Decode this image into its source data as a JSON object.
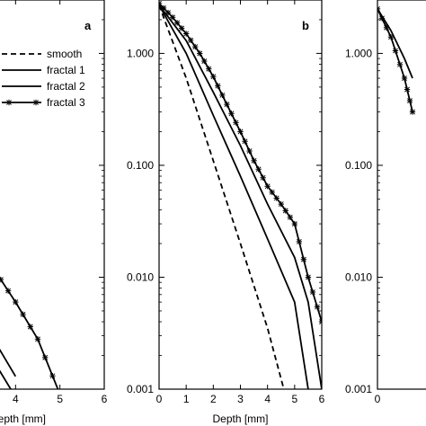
{
  "chart_data": [
    {
      "panel": "a",
      "type": "line",
      "title": "",
      "xlabel": "Depth [mm]",
      "ylabel": "",
      "y_scale": "log",
      "xlim": [
        0,
        6
      ],
      "ylim": [
        0.001,
        3
      ],
      "x_ticks": [
        "3",
        "4",
        "5",
        "6"
      ],
      "legend": {
        "placement": "top-right",
        "entries": [
          "smooth",
          "fractal 1",
          "fractal 2",
          "fractal 3"
        ]
      },
      "series": [
        {
          "name": "fractal 1",
          "style": "solid",
          "x": [
            1.5,
            2.0,
            2.5,
            3.0,
            3.5,
            4.0
          ],
          "y": [
            0.04,
            0.02,
            0.009,
            0.004,
            0.0018,
            0.00085
          ]
        },
        {
          "name": "fractal 2",
          "style": "solid",
          "x": [
            1.5,
            2.0,
            2.5,
            3.0,
            3.5,
            4.0
          ],
          "y": [
            0.06,
            0.03,
            0.014,
            0.006,
            0.0028,
            0.0013
          ]
        },
        {
          "name": "fractal 3",
          "style": "solid-star",
          "x": [
            1.5,
            2.0,
            2.5,
            3.0,
            3.5,
            4.0,
            4.5,
            5.0
          ],
          "y": [
            0.12,
            0.07,
            0.04,
            0.022,
            0.012,
            0.006,
            0.0028,
            0.0009
          ]
        }
      ]
    },
    {
      "panel": "b",
      "type": "line",
      "title": "",
      "xlabel": "Depth [mm]",
      "ylabel": "",
      "y_scale": "log",
      "xlim": [
        0,
        6
      ],
      "ylim": [
        0.001,
        3
      ],
      "x_ticks": [
        "0",
        "1",
        "2",
        "3",
        "4",
        "5",
        "6"
      ],
      "y_ticks": [
        "0.001",
        "0.010",
        "0.100",
        "1.000"
      ],
      "series": [
        {
          "name": "smooth",
          "style": "dashed",
          "x": [
            0,
            1,
            2,
            3,
            4,
            4.6
          ],
          "y": [
            2.7,
            0.6,
            0.11,
            0.02,
            0.0035,
            0.001
          ]
        },
        {
          "name": "fractal 1",
          "style": "solid",
          "x": [
            0,
            1,
            2,
            3,
            4,
            5,
            5.5
          ],
          "y": [
            2.7,
            1.0,
            0.28,
            0.08,
            0.022,
            0.006,
            0.001
          ]
        },
        {
          "name": "fractal 2",
          "style": "solid",
          "x": [
            0,
            1,
            2,
            3,
            4,
            5,
            5.5,
            6
          ],
          "y": [
            2.7,
            1.3,
            0.45,
            0.15,
            0.045,
            0.015,
            0.006,
            0.001
          ]
        },
        {
          "name": "fractal 3",
          "style": "solid-star",
          "x": [
            0,
            0.5,
            1,
            1.5,
            2,
            2.5,
            3,
            3.5,
            4,
            4.5,
            5,
            5.5,
            6
          ],
          "y": [
            2.8,
            2.1,
            1.5,
            1.0,
            0.62,
            0.35,
            0.2,
            0.11,
            0.065,
            0.045,
            0.03,
            0.01,
            0.004
          ]
        }
      ]
    },
    {
      "panel": "c",
      "type": "line",
      "title": "",
      "xlabel": "",
      "ylabel": "",
      "y_scale": "log",
      "xlim": [
        0,
        6
      ],
      "ylim": [
        0.001,
        3
      ],
      "x_ticks": [
        "0"
      ],
      "y_ticks": [
        "0.001",
        "0.010",
        "0.100",
        "1.000"
      ],
      "series": [
        {
          "name": "fractal 1",
          "style": "solid-star",
          "x": [
            0,
            0.5,
            1,
            1.3
          ],
          "y": [
            2.5,
            1.4,
            0.6,
            0.3
          ]
        },
        {
          "name": "fractal 2",
          "style": "solid",
          "x": [
            0,
            0.5,
            1,
            1.3
          ],
          "y": [
            2.5,
            1.6,
            0.9,
            0.6
          ]
        }
      ]
    }
  ]
}
